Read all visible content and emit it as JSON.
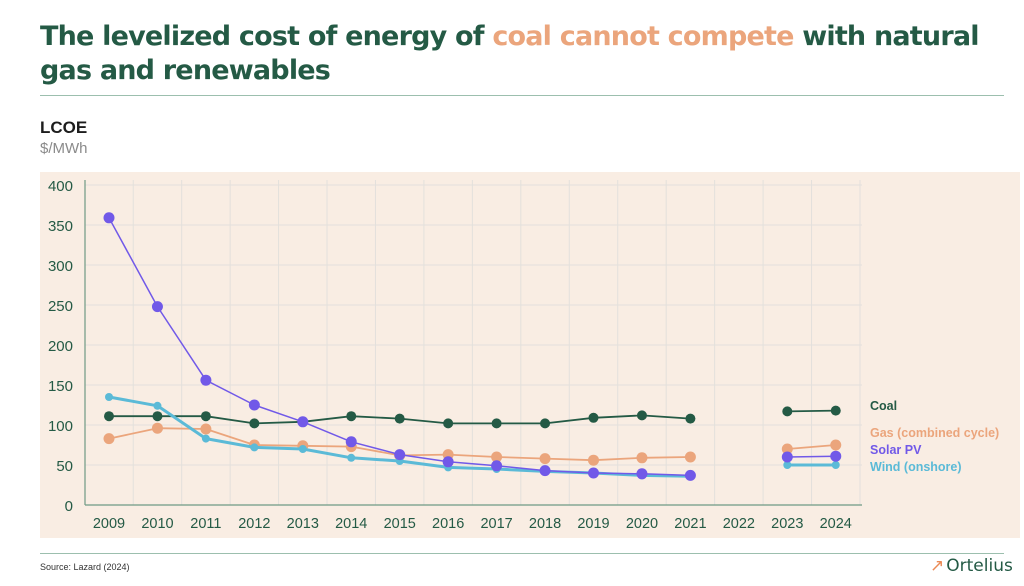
{
  "title": {
    "part1": "The levelized cost of energy of ",
    "highlight": "coal cannot compete",
    "part2": " with natural gas and renewables"
  },
  "footer": {
    "source": "Source: Lazard (2024)",
    "brand": "Ortelius",
    "brand_icon": "arrow-up-right-icon"
  },
  "colors": {
    "coal": "#245a45",
    "gas": "#eba57c",
    "solar": "#7159e8",
    "wind": "#5bbad7",
    "plot_bg": "#f9ede3",
    "axis_text": "#245a45"
  },
  "chart_data": {
    "type": "line",
    "title": "LCOE",
    "ylabel": "$/MWh",
    "xlabel": "",
    "categories": [
      "2009",
      "2010",
      "2011",
      "2012",
      "2013",
      "2014",
      "2015",
      "2016",
      "2017",
      "2018",
      "2019",
      "2020",
      "2021",
      "2022",
      "2023",
      "2024"
    ],
    "yticks": [
      0,
      50,
      100,
      150,
      200,
      250,
      300,
      350,
      400
    ],
    "ylim": [
      0,
      400
    ],
    "grid": true,
    "legend": "right (inline labels)",
    "series": [
      {
        "name": "Coal",
        "key": "coal",
        "values": [
          111,
          111,
          111,
          102,
          104,
          111,
          108,
          102,
          102,
          102,
          109,
          112,
          108,
          null,
          117,
          118
        ]
      },
      {
        "name": "Gas (combined cycle)",
        "key": "gas",
        "values": [
          83,
          96,
          95,
          75,
          74,
          73,
          62,
          63,
          60,
          58,
          56,
          59,
          60,
          null,
          70,
          75
        ]
      },
      {
        "name": "Solar PV",
        "key": "solar",
        "values": [
          359,
          248,
          156,
          125,
          104,
          79,
          63,
          54,
          49,
          43,
          40,
          39,
          37,
          null,
          60,
          61
        ]
      },
      {
        "name": "Wind (onshore)",
        "key": "wind",
        "values": [
          135,
          124,
          83,
          72,
          70,
          59,
          55,
          47,
          45,
          42,
          40,
          37,
          36,
          null,
          50,
          50
        ]
      }
    ]
  }
}
